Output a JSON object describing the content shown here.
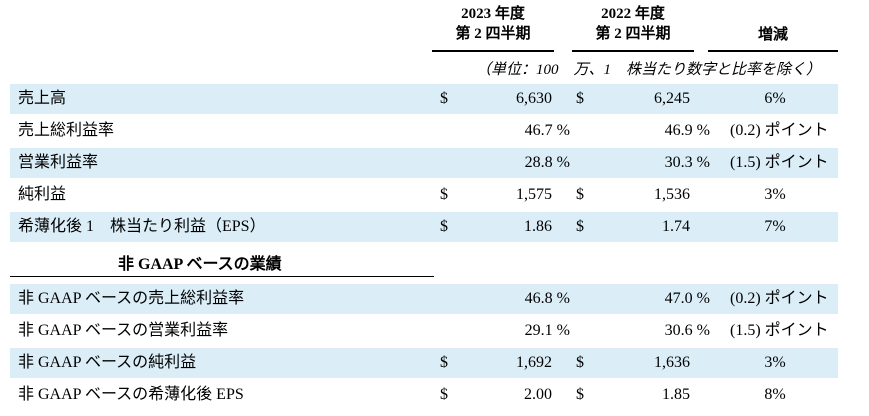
{
  "header": {
    "col2023": {
      "line1": "2023 年度",
      "line2": "第 2 四半期"
    },
    "col2022": {
      "line1": "2022 年度",
      "line2": "第 2 四半期"
    },
    "change": "増減",
    "units": "（単位：100　万、1　株当たり数字と比率を除く）"
  },
  "rows": [
    {
      "label": "売上高",
      "d1": "$",
      "v1": "6,630",
      "d2": "$",
      "v2": "6,245",
      "change": "6%"
    },
    {
      "label": "売上総利益率",
      "v1": "46.7 %",
      "v2": "46.9 %",
      "change": "(0.2) ポイント"
    },
    {
      "label": "営業利益率",
      "v1": "28.8 %",
      "v2": "30.3 %",
      "change": "(1.5) ポイント"
    },
    {
      "label": "純利益",
      "d1": "$",
      "v1": "1,575",
      "d2": "$",
      "v2": "1,536",
      "change": "3%"
    },
    {
      "label": "希薄化後 1　株当たり利益（EPS）",
      "d1": "$",
      "v1": "1.86",
      "d2": "$",
      "v2": "1.74",
      "change": "7%"
    }
  ],
  "section_title": "非 GAAP ベースの業績",
  "nongaap_rows": [
    {
      "label": "非 GAAP ベースの売上総利益率",
      "v1": "46.8 %",
      "v2": "47.0 %",
      "change": "(0.2) ポイント"
    },
    {
      "label": "非 GAAP ベースの営業利益率",
      "v1": "29.1 %",
      "v2": "30.6 %",
      "change": "(1.5) ポイント"
    },
    {
      "label": "非 GAAP ベースの純利益",
      "d1": "$",
      "v1": "1,692",
      "d2": "$",
      "v2": "1,636",
      "change": "3%"
    },
    {
      "label": "非 GAAP ベースの希薄化後 EPS",
      "d1": "$",
      "v1": "2.00",
      "d2": "$",
      "v2": "1.85",
      "change": "8%"
    }
  ]
}
